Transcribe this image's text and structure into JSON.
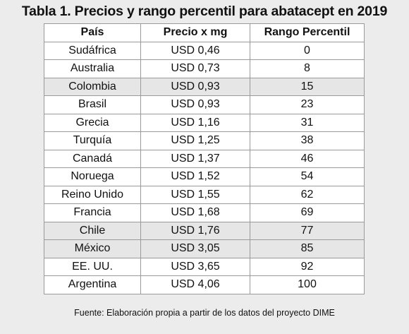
{
  "title": "Tabla 1. Precios y rango percentil para abatacept en 2019",
  "table": {
    "headers": [
      "País",
      "Precio x mg",
      "Rango Percentil"
    ],
    "rows": [
      {
        "pais": "Sudáfrica",
        "precio": "USD 0,46",
        "rango": "0",
        "shaded": false
      },
      {
        "pais": "Australia",
        "precio": "USD 0,73",
        "rango": "8",
        "shaded": false
      },
      {
        "pais": "Colombia",
        "precio": "USD 0,93",
        "rango": "15",
        "shaded": true
      },
      {
        "pais": "Brasil",
        "precio": "USD 0,93",
        "rango": "23",
        "shaded": false
      },
      {
        "pais": "Grecia",
        "precio": "USD 1,16",
        "rango": "31",
        "shaded": false
      },
      {
        "pais": "Turquía",
        "precio": "USD 1,25",
        "rango": "38",
        "shaded": false
      },
      {
        "pais": "Canadá",
        "precio": "USD 1,37",
        "rango": "46",
        "shaded": false
      },
      {
        "pais": "Noruega",
        "precio": "USD 1,52",
        "rango": "54",
        "shaded": false
      },
      {
        "pais": "Reino Unido",
        "precio": "USD 1,55",
        "rango": "62",
        "shaded": false
      },
      {
        "pais": "Francia",
        "precio": "USD 1,68",
        "rango": "69",
        "shaded": false
      },
      {
        "pais": "Chile",
        "precio": "USD 1,76",
        "rango": "77",
        "shaded": true
      },
      {
        "pais": "México",
        "precio": "USD 3,05",
        "rango": "85",
        "shaded": true
      },
      {
        "pais": "EE. UU.",
        "precio": "USD 3,65",
        "rango": "92",
        "shaded": false
      },
      {
        "pais": "Argentina",
        "precio": "USD 4,06",
        "rango": "100",
        "shaded": false
      }
    ]
  },
  "source": "Fuente: Elaboración propia a partir de los datos del proyecto DIME",
  "colors": {
    "page_background": "#ececec",
    "cell_background": "#ffffff",
    "shaded_row": "#e6e6e6",
    "grid_line": "#9a9a9a"
  }
}
